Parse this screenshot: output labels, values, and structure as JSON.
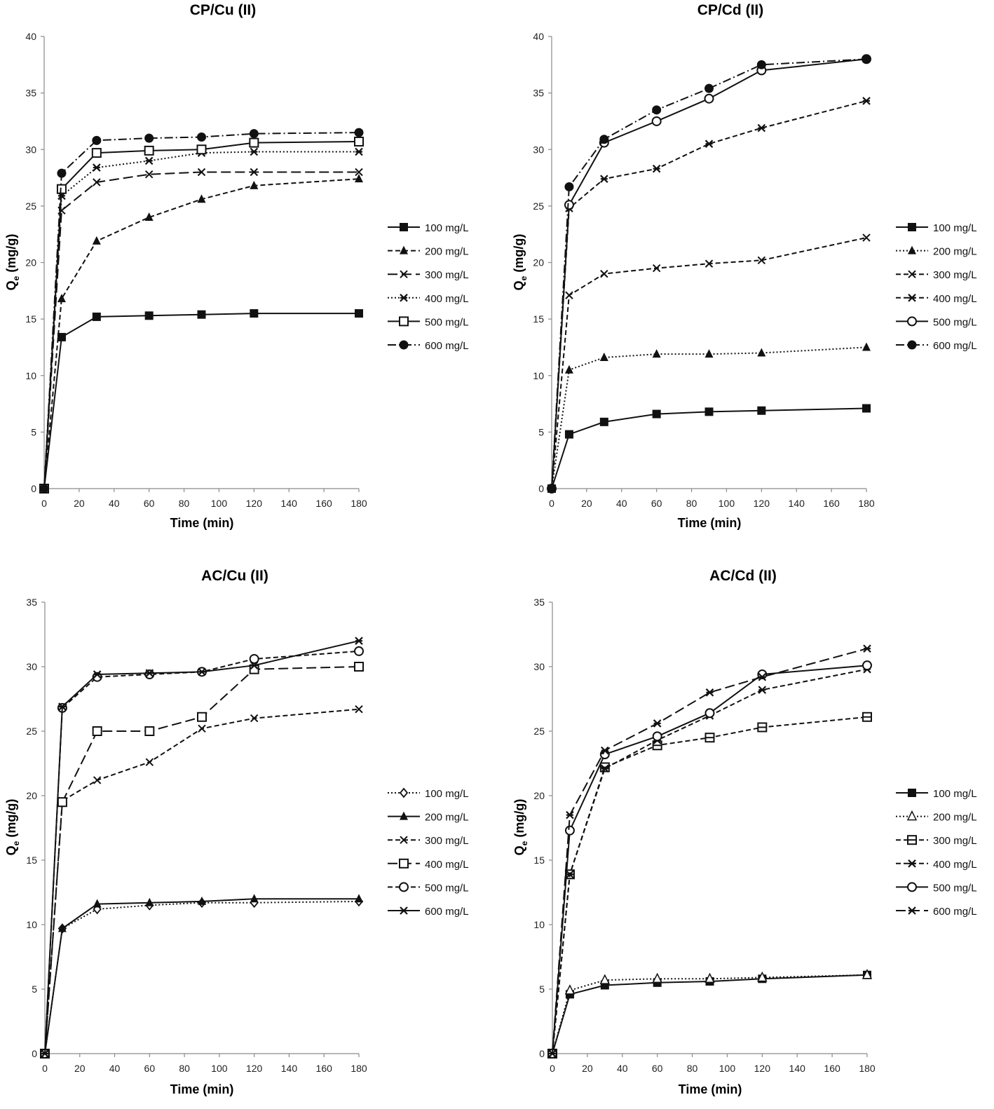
{
  "chart_data": [
    {
      "type": "line",
      "title": "CP/Cu (II)",
      "xlabel": "Time (min)",
      "ylabel_main": "Q",
      "ylabel_sub": "e",
      "ylabel_unit": " (mg/g)",
      "x": [
        0,
        10,
        30,
        60,
        90,
        120,
        180
      ],
      "xlim": [
        0,
        180
      ],
      "xticks": [
        0,
        20,
        40,
        60,
        80,
        100,
        120,
        140,
        160,
        180
      ],
      "ylim": [
        0,
        40
      ],
      "yticks": [
        0,
        5,
        10,
        15,
        20,
        25,
        30,
        35,
        40
      ],
      "grid": false,
      "legend_position": "right",
      "series": [
        {
          "name": "100 mg/L",
          "values": [
            0,
            13.4,
            15.2,
            15.3,
            15.4,
            15.5,
            15.5
          ],
          "marker": "square-filled",
          "dash": "solid"
        },
        {
          "name": "200 mg/L",
          "values": [
            0,
            16.8,
            21.9,
            24.0,
            25.6,
            26.8,
            27.4
          ],
          "marker": "triangle-filled",
          "dash": "dashed"
        },
        {
          "name": "300 mg/L",
          "values": [
            0,
            24.6,
            27.1,
            27.8,
            28.0,
            28.0,
            28.0
          ],
          "marker": "x",
          "dash": "longdash"
        },
        {
          "name": "400 mg/L",
          "values": [
            0,
            25.9,
            28.4,
            29.0,
            29.7,
            29.8,
            29.8
          ],
          "marker": "star",
          "dash": "dotted"
        },
        {
          "name": "500 mg/L",
          "values": [
            0,
            26.5,
            29.7,
            29.9,
            30.0,
            30.6,
            30.7
          ],
          "marker": "square-open",
          "dash": "solid"
        },
        {
          "name": "600 mg/L",
          "values": [
            0,
            27.9,
            30.8,
            31.0,
            31.1,
            31.4,
            31.5
          ],
          "marker": "circle-filled",
          "dash": "dashdot"
        }
      ]
    },
    {
      "type": "line",
      "title": "CP/Cd (II)",
      "xlabel": "Time (min)",
      "ylabel_main": "Q",
      "ylabel_sub": "e",
      "ylabel_unit": " (mg/g)",
      "x": [
        0,
        10,
        30,
        60,
        90,
        120,
        180
      ],
      "xlim": [
        0,
        180
      ],
      "xticks": [
        0,
        20,
        40,
        60,
        80,
        100,
        120,
        140,
        160,
        180
      ],
      "ylim": [
        0,
        40
      ],
      "yticks": [
        0,
        5,
        10,
        15,
        20,
        25,
        30,
        35,
        40
      ],
      "grid": false,
      "legend_position": "right",
      "series": [
        {
          "name": "100 mg/L",
          "values": [
            0,
            4.8,
            5.9,
            6.6,
            6.8,
            6.9,
            7.1
          ],
          "marker": "square-filled",
          "dash": "solid"
        },
        {
          "name": "200 mg/L",
          "values": [
            0,
            10.5,
            11.6,
            11.9,
            11.9,
            12.0,
            12.5
          ],
          "marker": "triangle-filled",
          "dash": "dotted"
        },
        {
          "name": "300 mg/L",
          "values": [
            0,
            17.1,
            19.0,
            19.5,
            19.9,
            20.2,
            22.2
          ],
          "marker": "x",
          "dash": "dashed"
        },
        {
          "name": "400 mg/L",
          "values": [
            0,
            24.8,
            27.4,
            28.3,
            30.5,
            31.9,
            34.3
          ],
          "marker": "star",
          "dash": "dashed"
        },
        {
          "name": "500 mg/L",
          "values": [
            0,
            25.1,
            30.6,
            32.5,
            34.5,
            37.0,
            38.0
          ],
          "marker": "circle-open",
          "dash": "solid"
        },
        {
          "name": "600 mg/L",
          "values": [
            0,
            26.7,
            30.9,
            33.5,
            35.4,
            37.5,
            38.0
          ],
          "marker": "circle-filled",
          "dash": "dashdot"
        }
      ]
    },
    {
      "type": "line",
      "title": "AC/Cu (II)",
      "xlabel": "Time (min)",
      "ylabel_main": "Q",
      "ylabel_sub": "e",
      "ylabel_unit": " (mg/g)",
      "x": [
        0,
        10,
        30,
        60,
        90,
        120,
        180
      ],
      "xlim": [
        0,
        180
      ],
      "xticks": [
        0,
        20,
        40,
        60,
        80,
        100,
        120,
        140,
        160,
        180
      ],
      "ylim": [
        0,
        35
      ],
      "yticks": [
        0,
        5,
        10,
        15,
        20,
        25,
        30,
        35
      ],
      "grid": false,
      "legend_position": "right",
      "series": [
        {
          "name": "100 mg/L",
          "values": [
            0,
            9.7,
            11.2,
            11.5,
            11.7,
            11.7,
            11.8
          ],
          "marker": "diamond-open",
          "dash": "dotted"
        },
        {
          "name": "200 mg/L",
          "values": [
            0,
            9.7,
            11.6,
            11.7,
            11.8,
            12.0,
            12.0
          ],
          "marker": "triangle-filled",
          "dash": "solid"
        },
        {
          "name": "300 mg/L",
          "values": [
            0,
            19.6,
            21.2,
            22.6,
            25.2,
            26.0,
            26.7
          ],
          "marker": "x",
          "dash": "dashed"
        },
        {
          "name": "400 mg/L",
          "values": [
            0,
            19.5,
            25.0,
            25.0,
            26.1,
            29.8,
            30.0
          ],
          "marker": "square-open",
          "dash": "longdash"
        },
        {
          "name": "500 mg/L",
          "values": [
            0,
            26.8,
            29.2,
            29.4,
            29.6,
            30.6,
            31.2
          ],
          "marker": "circle-open",
          "dash": "dashed"
        },
        {
          "name": "600 mg/L",
          "values": [
            0,
            26.9,
            29.4,
            29.5,
            29.6,
            30.1,
            32.0
          ],
          "marker": "star",
          "dash": "solid"
        }
      ]
    },
    {
      "type": "line",
      "title": "AC/Cd (II)",
      "xlabel": "Time (min)",
      "ylabel_main": "Q",
      "ylabel_sub": "e",
      "ylabel_unit": " (mg/g)",
      "x": [
        0,
        10,
        30,
        60,
        90,
        120,
        180
      ],
      "xlim": [
        0,
        180
      ],
      "xticks": [
        0,
        20,
        40,
        60,
        80,
        100,
        120,
        140,
        160,
        180
      ],
      "ylim": [
        0,
        35
      ],
      "yticks": [
        0,
        5,
        10,
        15,
        20,
        25,
        30,
        35
      ],
      "grid": false,
      "legend_position": "right",
      "series": [
        {
          "name": "100 mg/L",
          "values": [
            0,
            4.6,
            5.3,
            5.5,
            5.6,
            5.8,
            6.1
          ],
          "marker": "square-filled",
          "dash": "solid"
        },
        {
          "name": "200 mg/L",
          "values": [
            0,
            4.9,
            5.7,
            5.8,
            5.8,
            5.9,
            6.1
          ],
          "marker": "triangle-open",
          "dash": "dotted"
        },
        {
          "name": "300 mg/L",
          "values": [
            0,
            13.9,
            22.2,
            23.9,
            24.5,
            25.3,
            26.1
          ],
          "marker": "square-half",
          "dash": "dashed"
        },
        {
          "name": "400 mg/L",
          "values": [
            0,
            13.9,
            22.1,
            24.3,
            26.2,
            28.2,
            29.8
          ],
          "marker": "star",
          "dash": "dashed"
        },
        {
          "name": "500 mg/L",
          "values": [
            0,
            17.3,
            23.2,
            24.6,
            26.4,
            29.4,
            30.1
          ],
          "marker": "circle-open",
          "dash": "solid"
        },
        {
          "name": "600 mg/L",
          "values": [
            0,
            18.5,
            23.5,
            25.6,
            28.0,
            29.2,
            31.4
          ],
          "marker": "star",
          "dash": "longdash"
        }
      ]
    }
  ]
}
